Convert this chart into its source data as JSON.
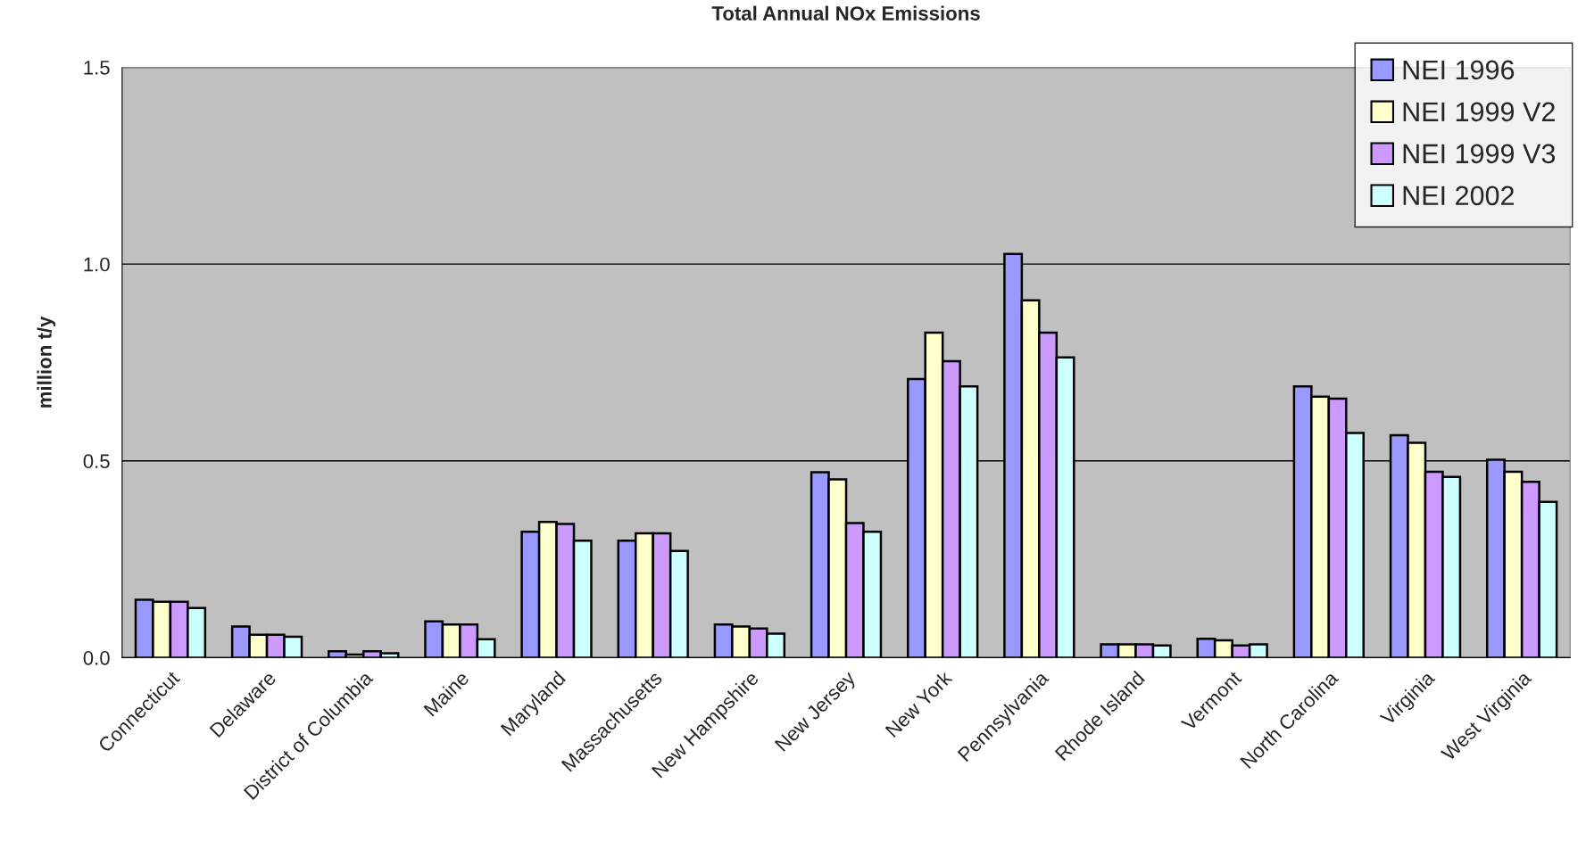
{
  "chart_data": {
    "type": "bar",
    "title": "Total Annual NOx Emissions",
    "ylabel": "million t/y",
    "categories": [
      "Connecticut",
      "Delaware",
      "District of Columbia",
      "Maine",
      "Maryland",
      "Massachusetts",
      "New Hampshire",
      "New Jersey",
      "New York",
      "Pennsylvania",
      "Rhode Island",
      "Vermont",
      "North Carolina",
      "Virginia",
      "West Virginia"
    ],
    "series": [
      {
        "name": "NEI 1996",
        "color": "#9999ff",
        "values": [
          0.147,
          0.079,
          0.016,
          0.092,
          0.32,
          0.297,
          0.084,
          0.471,
          0.708,
          1.026,
          0.034,
          0.048,
          0.689,
          0.565,
          0.503
        ]
      },
      {
        "name": "NEI 1999 V2",
        "color": "#ffffcc",
        "values": [
          0.142,
          0.058,
          0.008,
          0.084,
          0.345,
          0.316,
          0.079,
          0.453,
          0.826,
          0.908,
          0.034,
          0.044,
          0.663,
          0.546,
          0.472
        ]
      },
      {
        "name": "NEI 1999 V3",
        "color": "#cc99ff",
        "values": [
          0.142,
          0.058,
          0.016,
          0.084,
          0.34,
          0.316,
          0.074,
          0.342,
          0.753,
          0.826,
          0.034,
          0.031,
          0.658,
          0.472,
          0.447
        ]
      },
      {
        "name": "NEI 2002",
        "color": "#ccffff",
        "values": [
          0.126,
          0.053,
          0.011,
          0.047,
          0.297,
          0.271,
          0.061,
          0.32,
          0.689,
          0.763,
          0.031,
          0.034,
          0.571,
          0.459,
          0.396
        ]
      }
    ],
    "ylim": [
      0,
      1.5
    ],
    "yticks": [
      {
        "value": 0,
        "label": "0.0"
      },
      {
        "value": 0.5,
        "label": "0.5"
      },
      {
        "value": 1.0,
        "label": "1.0"
      },
      {
        "value": 1.5,
        "label": "1.5"
      }
    ],
    "grid": "y",
    "legend": "top right"
  }
}
